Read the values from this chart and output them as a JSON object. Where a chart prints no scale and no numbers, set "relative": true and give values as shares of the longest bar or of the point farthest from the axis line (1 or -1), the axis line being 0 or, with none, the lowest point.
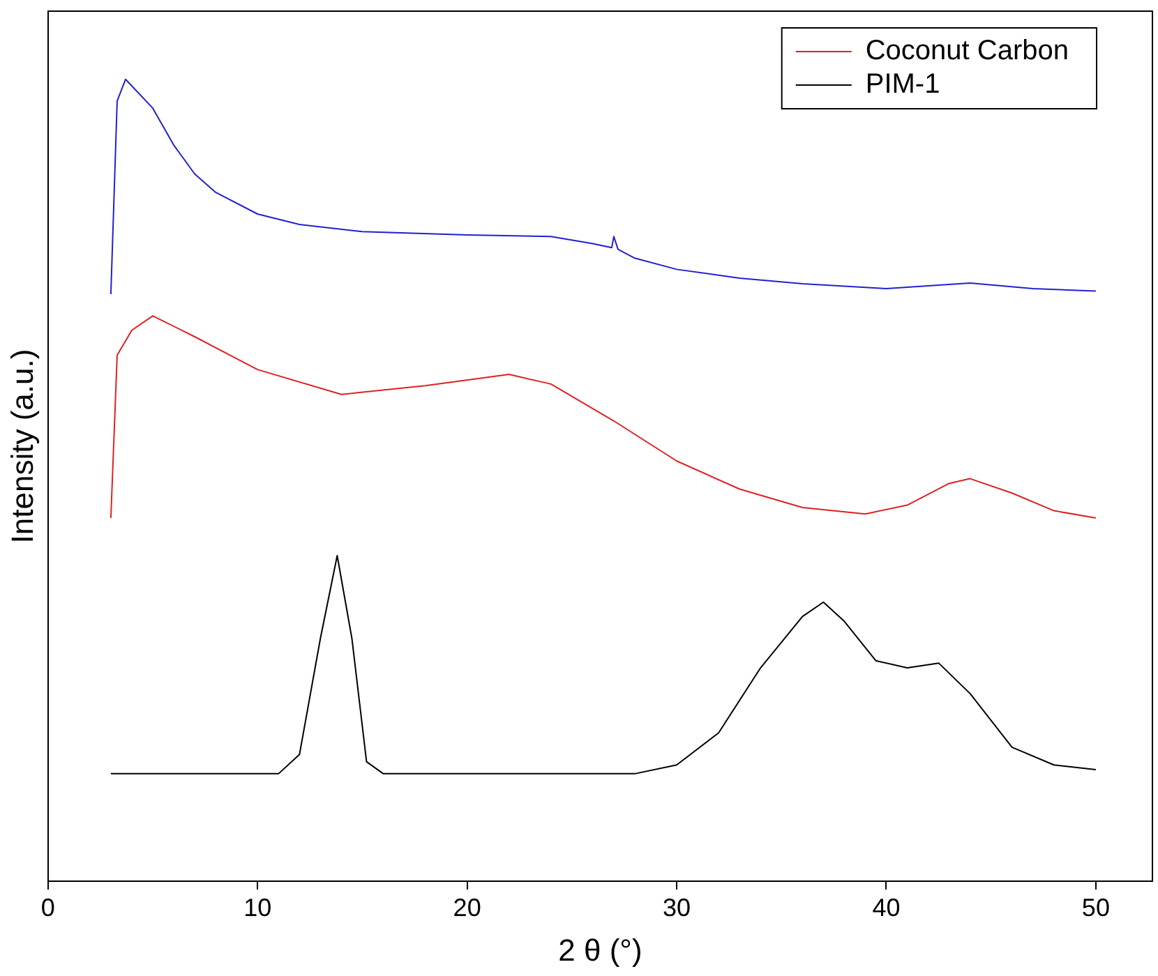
{
  "chart_data": {
    "type": "line",
    "xlabel": "2 θ (°)",
    "ylabel": "Intensity (a.u.)",
    "relative": true,
    "grid": false,
    "legend": "top right",
    "marker": "none",
    "line_style": "solid",
    "xlim": [
      0,
      52.7
    ],
    "xticks": [
      0,
      10,
      20,
      30,
      40,
      50
    ],
    "series": [
      {
        "color": "#2020d0",
        "x": [
          3,
          3.3,
          3.7,
          5,
          6,
          7,
          8,
          10,
          12,
          15,
          20,
          24,
          26,
          26.9,
          27,
          27.2,
          28,
          30,
          33,
          36,
          40,
          44,
          47,
          50
        ],
        "values": [
          0.732,
          0.973,
          1.0,
          0.964,
          0.918,
          0.882,
          0.859,
          0.832,
          0.819,
          0.81,
          0.806,
          0.804,
          0.795,
          0.79,
          0.804,
          0.788,
          0.777,
          0.763,
          0.752,
          0.745,
          0.739,
          0.746,
          0.739,
          0.736
        ]
      },
      {
        "name": "Coconut Carbon",
        "color": "#e02020",
        "x": [
          3,
          3.3,
          4,
          5,
          7,
          10,
          14,
          18,
          22,
          24,
          27,
          30,
          33,
          36,
          39,
          41,
          43,
          44,
          46,
          48,
          50
        ],
        "values": [
          0.453,
          0.656,
          0.687,
          0.705,
          0.679,
          0.638,
          0.607,
          0.618,
          0.632,
          0.62,
          0.574,
          0.524,
          0.489,
          0.466,
          0.458,
          0.469,
          0.496,
          0.502,
          0.484,
          0.462,
          0.453
        ]
      },
      {
        "name": "PIM-1",
        "color": "#000000",
        "x": [
          3,
          11,
          12,
          13,
          13.8,
          14.5,
          15.2,
          16,
          28,
          30,
          32,
          34,
          36,
          37,
          38,
          39.5,
          41,
          42.5,
          44,
          46,
          48,
          50
        ],
        "values": [
          0.134,
          0.134,
          0.158,
          0.303,
          0.406,
          0.303,
          0.149,
          0.134,
          0.134,
          0.145,
          0.185,
          0.266,
          0.33,
          0.348,
          0.324,
          0.275,
          0.266,
          0.272,
          0.234,
          0.167,
          0.145,
          0.139
        ]
      }
    ]
  }
}
